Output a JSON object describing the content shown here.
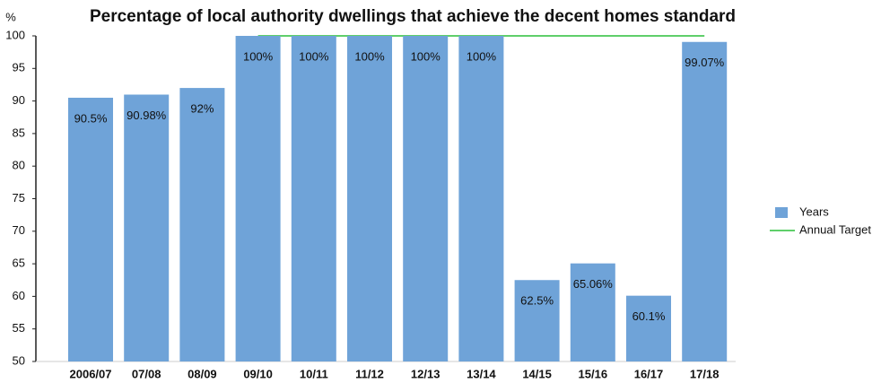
{
  "chart_data": {
    "type": "bar",
    "title": "Percentage of local authority dwellings that achieve the decent homes standard",
    "y_label": "%",
    "categories": [
      "2006/07",
      "07/08",
      "08/09",
      "09/10",
      "10/11",
      "11/12",
      "12/13",
      "13/14",
      "14/15",
      "15/16",
      "16/17",
      "17/18"
    ],
    "series": [
      {
        "name": "Years",
        "type": "bar",
        "color": "#6fa3d8",
        "values": [
          90.5,
          90.98,
          92,
          100,
          100,
          100,
          100,
          100,
          62.5,
          65.06,
          60.1,
          99.07
        ],
        "value_labels": [
          "90.5%",
          "90.98%",
          "92%",
          "100%",
          "100%",
          "100%",
          "100%",
          "100%",
          "62.5%",
          "65.06%",
          "60.1%",
          "99.07%"
        ]
      },
      {
        "name": "Annual Target",
        "type": "line",
        "color": "#5fcf6a",
        "values": [
          null,
          null,
          null,
          100,
          100,
          100,
          100,
          100,
          100,
          100,
          100,
          100
        ]
      }
    ],
    "ylim": [
      50,
      100
    ],
    "yticks": [
      50,
      55,
      60,
      65,
      70,
      75,
      80,
      85,
      90,
      95,
      100
    ],
    "legend": "right"
  }
}
